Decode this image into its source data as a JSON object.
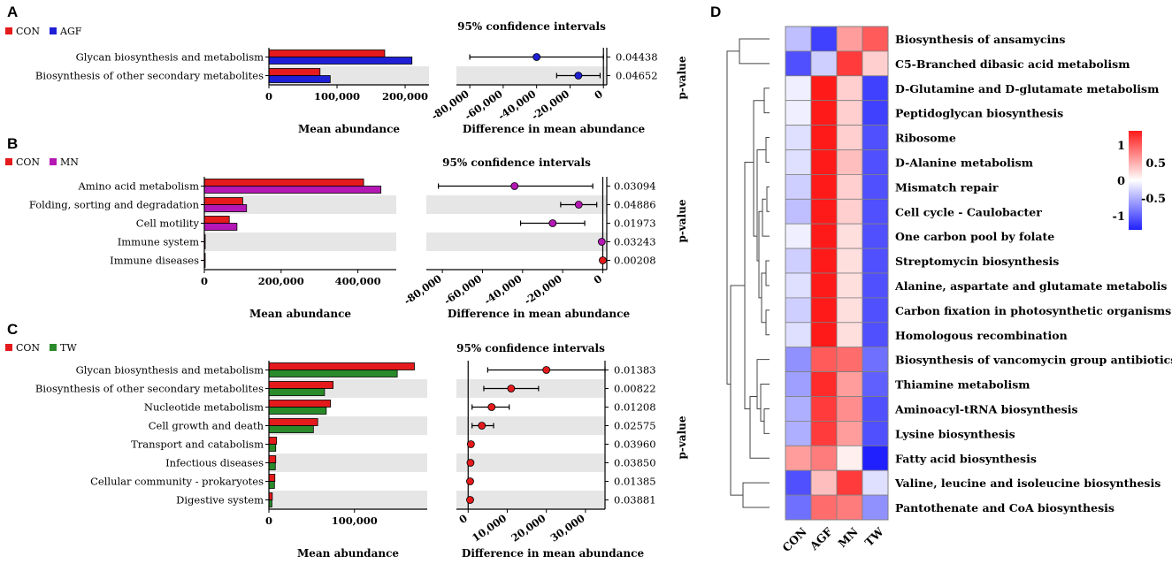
{
  "panels": [
    {
      "id": "A",
      "legend": [
        {
          "name": "CON",
          "color": "#e41a1c"
        },
        {
          "name": "AGF",
          "color": "#1f1fd6"
        }
      ],
      "categories": [
        "Glycan biosynthesis and metabolism",
        "Biosynthesis of other secondary metabolites"
      ],
      "series": [
        {
          "name": "CON",
          "color": "#e41a1c",
          "values": [
            170000,
            75000
          ]
        },
        {
          "name": "AGF",
          "color": "#1f1fd6",
          "values": [
            210000,
            90000
          ]
        }
      ],
      "bar_xlim": [
        0,
        235000
      ],
      "bar_ticks": [
        0,
        100000,
        200000
      ],
      "bar_tick_labels": [
        "0",
        "100,000",
        "200,000"
      ],
      "bar_xlabel": "Mean abundance",
      "ci_title": "95% confidence intervals",
      "ci_xlabel": "Difference in mean abundance",
      "ci_xlim": [
        -88000,
        2000
      ],
      "ci_ticks": [
        -80000,
        -60000,
        -40000,
        -20000,
        0
      ],
      "ci_tick_labels": [
        "-80,000",
        "-60,000",
        "-40,000",
        "-20,000",
        "0"
      ],
      "ci_color": "#1f1fd6",
      "ci": [
        {
          "estimate": -40000,
          "low": -80000,
          "high": 0
        },
        {
          "estimate": -15000,
          "low": -28000,
          "high": -2000
        }
      ],
      "pvalues": [
        "0.04438",
        "0.04652"
      ],
      "pvalue_label": "p-value"
    },
    {
      "id": "B",
      "legend": [
        {
          "name": "CON",
          "color": "#e41a1c"
        },
        {
          "name": "MN",
          "color": "#b417b4"
        }
      ],
      "categories": [
        "Amino acid metabolism",
        "Folding, sorting and degradation",
        "Cell motility",
        "Immune system",
        "Immune diseases"
      ],
      "series": [
        {
          "name": "CON",
          "color": "#e41a1c",
          "values": [
            415000,
            100000,
            65000,
            2000,
            1000
          ]
        },
        {
          "name": "MN",
          "color": "#b417b4",
          "values": [
            460000,
            110000,
            85000,
            1500,
            1000
          ]
        }
      ],
      "bar_xlim": [
        0,
        500000
      ],
      "bar_ticks": [
        0,
        200000,
        400000
      ],
      "bar_tick_labels": [
        "0",
        "200,000",
        "400,000"
      ],
      "bar_xlabel": "Mean abundance",
      "ci_title": "95% confidence intervals",
      "ci_xlabel": "Difference in mean abundance",
      "ci_xlim": [
        -88000,
        2000
      ],
      "ci_ticks": [
        -80000,
        -60000,
        -40000,
        -20000,
        0
      ],
      "ci_tick_labels": [
        "-80,000",
        "-60,000",
        "-40,000",
        "-20,000",
        "0"
      ],
      "ci_color": "#b417b4",
      "ci": [
        {
          "estimate": -44000,
          "low": -82000,
          "high": -5000
        },
        {
          "estimate": -12000,
          "low": -21000,
          "high": -3000
        },
        {
          "estimate": -25000,
          "low": -41000,
          "high": -9000
        },
        {
          "estimate": -500,
          "low": -800,
          "high": -200
        },
        {
          "estimate": 0,
          "low": -200,
          "high": 200
        }
      ],
      "ci_last_color": "#e41a1c",
      "pvalues": [
        "0.03094",
        "0.04886",
        "0.01973",
        "0.03243",
        "0.00208"
      ],
      "pvalue_label": "p-value"
    },
    {
      "id": "C",
      "legend": [
        {
          "name": "CON",
          "color": "#e41a1c"
        },
        {
          "name": "TW",
          "color": "#2a8a2a"
        }
      ],
      "categories": [
        "Glycan biosynthesis and metabolism",
        "Biosynthesis of other secondary metabolites",
        "Nucleotide metabolism",
        "Cell growth and death",
        "Transport and catabolism",
        "Infectious diseases",
        "Cellular community - prokaryotes",
        "Digestive system"
      ],
      "series": [
        {
          "name": "CON",
          "color": "#e41a1c",
          "values": [
            170000,
            75000,
            72000,
            57000,
            9000,
            8000,
            7000,
            4000
          ]
        },
        {
          "name": "TW",
          "color": "#2a8a2a",
          "values": [
            150000,
            65000,
            67000,
            52000,
            8000,
            7500,
            6500,
            3500
          ]
        }
      ],
      "bar_xlim": [
        0,
        185000
      ],
      "bar_ticks": [
        0,
        100000
      ],
      "bar_tick_labels": [
        "0",
        "100,000"
      ],
      "bar_xlabel": "Mean abundance",
      "ci_title": "95% confidence intervals",
      "ci_xlabel": "Difference in mean abundance",
      "ci_xlim": [
        -3000,
        35000
      ],
      "ci_ticks": [
        0,
        10000,
        20000,
        30000
      ],
      "ci_tick_labels": [
        "0",
        "10,000",
        "20,000",
        "30,000"
      ],
      "ci_color": "#e41a1c",
      "ci": [
        {
          "estimate": 20000,
          "low": 5000,
          "high": 35000
        },
        {
          "estimate": 11000,
          "low": 4000,
          "high": 18000
        },
        {
          "estimate": 6000,
          "low": 1000,
          "high": 10500
        },
        {
          "estimate": 3500,
          "low": 1000,
          "high": 6500
        },
        {
          "estimate": 700,
          "low": 300,
          "high": 1100
        },
        {
          "estimate": 600,
          "low": 200,
          "high": 1000
        },
        {
          "estimate": 500,
          "low": 200,
          "high": 800
        },
        {
          "estimate": 500,
          "low": 200,
          "high": 800
        }
      ],
      "pvalues": [
        "0.01383",
        "0.00822",
        "0.01208",
        "0.02575",
        "0.03960",
        "0.03850",
        "0.01385",
        "0.03881"
      ],
      "pvalue_label": "p-value"
    }
  ],
  "heatmap": {
    "id": "D",
    "type": "heatmap",
    "columns": [
      "CON",
      "AGF",
      "MN",
      "TW"
    ],
    "rows": [
      "Biosynthesis of ansamycins",
      "C5-Branched dibasic acid metabolism",
      "D-Glutamine and D-glutamate metabolism",
      "Peptidoglycan biosynthesis",
      "Ribosome",
      "D-Alanine metabolism",
      "Mismatch repair",
      "Cell cycle - Caulobacter",
      "One carbon pool by folate",
      "Streptomycin biosynthesis",
      "Alanine, aspartate and glutamate metabolis",
      "Carbon fixation in photosynthetic organisms",
      "Homologous recombination",
      "Biosynthesis of vancomycin group antibiotics",
      "Thiamine metabolism",
      "Aminoacyl-tRNA biosynthesis",
      "Lysine biosynthesis",
      "Fatty acid biosynthesis",
      "Valine, leucine and isoleucine biosynthesis",
      "Pantothenate and CoA biosynthesis"
    ],
    "values": [
      [
        -0.4,
        -1.2,
        0.6,
        1.0
      ],
      [
        -1.1,
        -0.3,
        1.2,
        0.3
      ],
      [
        -0.1,
        1.4,
        0.3,
        -1.2
      ],
      [
        -0.1,
        1.4,
        0.3,
        -1.2
      ],
      [
        -0.2,
        1.4,
        0.3,
        -1.1
      ],
      [
        -0.2,
        1.4,
        0.4,
        -1.1
      ],
      [
        -0.3,
        1.4,
        0.3,
        -1.1
      ],
      [
        -0.4,
        1.4,
        0.3,
        -1.1
      ],
      [
        -0.1,
        1.4,
        0.2,
        -1.1
      ],
      [
        -0.3,
        1.4,
        0.2,
        -1.1
      ],
      [
        -0.2,
        1.4,
        0.2,
        -1.1
      ],
      [
        -0.3,
        1.4,
        0.2,
        -1.1
      ],
      [
        -0.2,
        1.4,
        0.2,
        -1.1
      ],
      [
        -0.7,
        1.0,
        0.9,
        -0.9
      ],
      [
        -0.6,
        1.3,
        0.6,
        -1.0
      ],
      [
        -0.5,
        1.2,
        0.7,
        -1.1
      ],
      [
        -0.5,
        1.2,
        0.6,
        -1.1
      ],
      [
        0.6,
        0.8,
        0.1,
        -1.4
      ],
      [
        -1.1,
        0.4,
        1.2,
        -0.2
      ],
      [
        -0.9,
        0.9,
        0.8,
        -0.7
      ]
    ],
    "colorbar_ticks": [
      "1",
      "0.5",
      "0",
      "-0.5",
      "-1"
    ],
    "colorbar_values": [
      1,
      0.5,
      0,
      -0.5,
      -1
    ],
    "vmin": -1.4,
    "vmax": 1.4,
    "colors": {
      "low": "#2020ff",
      "mid": "#ffffff",
      "high": "#ff1a1a"
    }
  }
}
